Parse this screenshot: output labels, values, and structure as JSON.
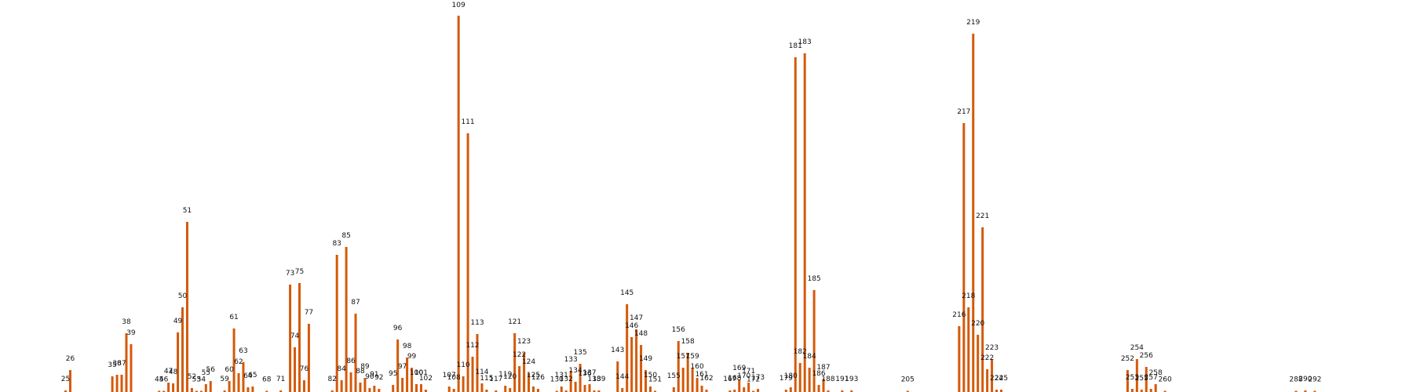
{
  "chart_data": {
    "type": "bar",
    "title": "",
    "xlabel": "",
    "ylabel": "",
    "bar_color": "#d35a0a",
    "ylim": [
      0,
      500
    ],
    "grid": false,
    "legend": "none",
    "bars": [
      {
        "label": "25",
        "value": 2
      },
      {
        "label": "26",
        "value": 28
      },
      {
        "label": "35",
        "value": 20
      },
      {
        "label": "36",
        "value": 22
      },
      {
        "label": "37",
        "value": 22
      },
      {
        "label": "38",
        "value": 75
      },
      {
        "label": "39",
        "value": 61
      },
      {
        "label": "45",
        "value": 1
      },
      {
        "label": "46",
        "value": 1
      },
      {
        "label": "47",
        "value": 12
      },
      {
        "label": "48",
        "value": 11
      },
      {
        "label": "49",
        "value": 76
      },
      {
        "label": "50",
        "value": 108
      },
      {
        "label": "51",
        "value": 217
      },
      {
        "label": "52",
        "value": 5
      },
      {
        "label": "53",
        "value": 1
      },
      {
        "label": "54",
        "value": 1
      },
      {
        "label": "55",
        "value": 10
      },
      {
        "label": "56",
        "value": 14
      },
      {
        "label": "59",
        "value": 2
      },
      {
        "label": "60",
        "value": 14
      },
      {
        "label": "61",
        "value": 81
      },
      {
        "label": "62",
        "value": 24
      },
      {
        "label": "63",
        "value": 38
      },
      {
        "label": "64",
        "value": 6
      },
      {
        "label": "65",
        "value": 7
      },
      {
        "label": "68",
        "value": 1
      },
      {
        "label": "71",
        "value": 2
      },
      {
        "label": "73",
        "value": 137
      },
      {
        "label": "74",
        "value": 57
      },
      {
        "label": "75",
        "value": 139
      },
      {
        "label": "76",
        "value": 15
      },
      {
        "label": "77",
        "value": 87
      },
      {
        "label": "82",
        "value": 2
      },
      {
        "label": "83",
        "value": 175
      },
      {
        "label": "84",
        "value": 15
      },
      {
        "label": "85",
        "value": 185
      },
      {
        "label": "86",
        "value": 25
      },
      {
        "label": "87",
        "value": 100
      },
      {
        "label": "88",
        "value": 12
      },
      {
        "label": "89",
        "value": 18
      },
      {
        "label": "90",
        "value": 5
      },
      {
        "label": "91",
        "value": 8
      },
      {
        "label": "92",
        "value": 4
      },
      {
        "label": "95",
        "value": 9
      },
      {
        "label": "96",
        "value": 67
      },
      {
        "label": "97",
        "value": 18
      },
      {
        "label": "98",
        "value": 44
      },
      {
        "label": "99",
        "value": 31
      },
      {
        "label": "100",
        "value": 10
      },
      {
        "label": "101",
        "value": 10
      },
      {
        "label": "102",
        "value": 3
      },
      {
        "label": "107",
        "value": 7
      },
      {
        "label": "108",
        "value": 4
      },
      {
        "label": "109",
        "value": 480
      },
      {
        "label": "110",
        "value": 20
      },
      {
        "label": "111",
        "value": 330
      },
      {
        "label": "112",
        "value": 45
      },
      {
        "label": "113",
        "value": 74
      },
      {
        "label": "114",
        "value": 11
      },
      {
        "label": "115",
        "value": 3
      },
      {
        "label": "117",
        "value": 2
      },
      {
        "label": "119",
        "value": 8
      },
      {
        "label": "120",
        "value": 5
      },
      {
        "label": "121",
        "value": 75
      },
      {
        "label": "122",
        "value": 33
      },
      {
        "label": "123",
        "value": 50
      },
      {
        "label": "124",
        "value": 24
      },
      {
        "label": "125",
        "value": 7
      },
      {
        "label": "126",
        "value": 4
      },
      {
        "label": "130",
        "value": 1
      },
      {
        "label": "131",
        "value": 7
      },
      {
        "label": "132",
        "value": 2
      },
      {
        "label": "133",
        "value": 27
      },
      {
        "label": "134",
        "value": 13
      },
      {
        "label": "135",
        "value": 36
      },
      {
        "label": "136",
        "value": 9
      },
      {
        "label": "137",
        "value": 10
      },
      {
        "label": "138",
        "value": 2
      },
      {
        "label": "139",
        "value": 2
      },
      {
        "label": "143",
        "value": 39
      },
      {
        "label": "144",
        "value": 5
      },
      {
        "label": "145",
        "value": 112
      },
      {
        "label": "146",
        "value": 70
      },
      {
        "label": "147",
        "value": 80
      },
      {
        "label": "148",
        "value": 60
      },
      {
        "label": "149",
        "value": 28
      },
      {
        "label": "150",
        "value": 7
      },
      {
        "label": "151",
        "value": 1
      },
      {
        "label": "155",
        "value": 6
      },
      {
        "label": "156",
        "value": 65
      },
      {
        "label": "157",
        "value": 31
      },
      {
        "label": "158",
        "value": 50
      },
      {
        "label": "159",
        "value": 31
      },
      {
        "label": "160",
        "value": 18
      },
      {
        "label": "161",
        "value": 8
      },
      {
        "label": "162",
        "value": 3
      },
      {
        "label": "167",
        "value": 2
      },
      {
        "label": "168",
        "value": 3
      },
      {
        "label": "169",
        "value": 16
      },
      {
        "label": "170",
        "value": 6
      },
      {
        "label": "171",
        "value": 12
      },
      {
        "label": "172",
        "value": 1
      },
      {
        "label": "173",
        "value": 4
      },
      {
        "label": "179",
        "value": 3
      },
      {
        "label": "180",
        "value": 6
      },
      {
        "label": "181",
        "value": 427
      },
      {
        "label": "182",
        "value": 37
      },
      {
        "label": "183",
        "value": 432
      },
      {
        "label": "184",
        "value": 31
      },
      {
        "label": "185",
        "value": 130
      },
      {
        "label": "186",
        "value": 9
      },
      {
        "label": "187",
        "value": 17
      },
      {
        "label": "188",
        "value": 2
      },
      {
        "label": "191",
        "value": 2
      },
      {
        "label": "193",
        "value": 2
      },
      {
        "label": "205",
        "value": 1
      },
      {
        "label": "216",
        "value": 84
      },
      {
        "label": "217",
        "value": 343
      },
      {
        "label": "218",
        "value": 108
      },
      {
        "label": "219",
        "value": 457
      },
      {
        "label": "220",
        "value": 73
      },
      {
        "label": "221",
        "value": 210
      },
      {
        "label": "222",
        "value": 29
      },
      {
        "label": "223",
        "value": 42
      },
      {
        "label": "224",
        "value": 3
      },
      {
        "label": "225",
        "value": 3
      },
      {
        "label": "252",
        "value": 28
      },
      {
        "label": "253",
        "value": 4
      },
      {
        "label": "254",
        "value": 42
      },
      {
        "label": "255",
        "value": 3
      },
      {
        "label": "256",
        "value": 32
      },
      {
        "label": "257",
        "value": 4
      },
      {
        "label": "258",
        "value": 10
      },
      {
        "label": "260",
        "value": 1
      },
      {
        "label": "288",
        "value": 1
      },
      {
        "label": "290",
        "value": 2
      },
      {
        "label": "292",
        "value": 1
      }
    ]
  }
}
